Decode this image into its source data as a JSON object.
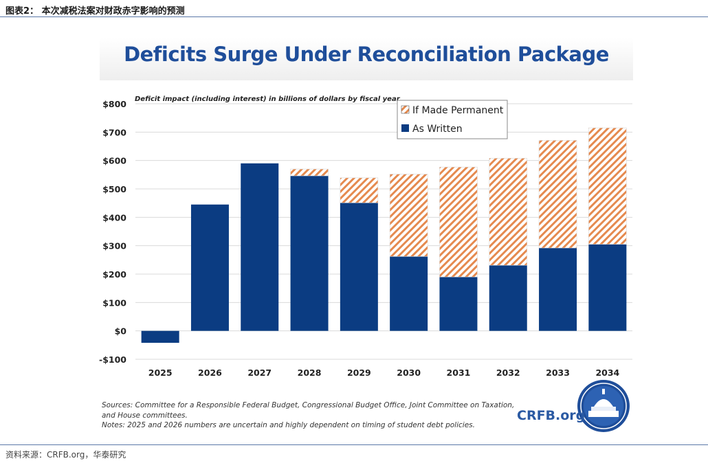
{
  "figure_title": "图表2：  本次减税法案对财政赤字影响的预测",
  "footer_source": "资料来源：CRFB.org，华泰研究",
  "brand_text": "CRFB.org",
  "colors": {
    "as_written": "#0b3c82",
    "permanent_hatch": "#e58a4f",
    "title": "#1f4e9a"
  },
  "chart_data": {
    "type": "bar",
    "title": "Deficits Surge Under Reconciliation Package",
    "subtitle": "Deficit impact (including interest) in billions of dollars by fiscal year",
    "xlabel": "",
    "ylabel": "",
    "categories": [
      "2025",
      "2026",
      "2027",
      "2028",
      "2029",
      "2030",
      "2031",
      "2032",
      "2033",
      "2034"
    ],
    "series": [
      {
        "name": "As Written",
        "values": [
          -42,
          445,
          590,
          546,
          451,
          262,
          190,
          231,
          292,
          305
        ]
      },
      {
        "name": "If Made Permanent",
        "values": [
          0,
          0,
          0,
          24,
          88,
          290,
          387,
          377,
          379,
          410
        ]
      }
    ],
    "stacked": true,
    "ylim": [
      -100,
      800
    ],
    "y_ticks": [
      -100,
      0,
      100,
      200,
      300,
      400,
      500,
      600,
      700,
      800
    ],
    "y_tick_labels": [
      "-$100",
      "$0",
      "$100",
      "$200",
      "$300",
      "$400",
      "$500",
      "$600",
      "$700",
      "$800"
    ],
    "legend": [
      "If Made Permanent",
      "As Written"
    ],
    "legend_position": "top-right",
    "grid": true
  },
  "sources_line1": "Sources: Committee for a Responsible Federal Budget, Congressional Budget Office, Joint Committee on Taxation,",
  "sources_line2": "and House committees.",
  "notes_line": "Notes: 2025 and 2026 numbers are uncertain and highly dependent on timing of student debt policies."
}
